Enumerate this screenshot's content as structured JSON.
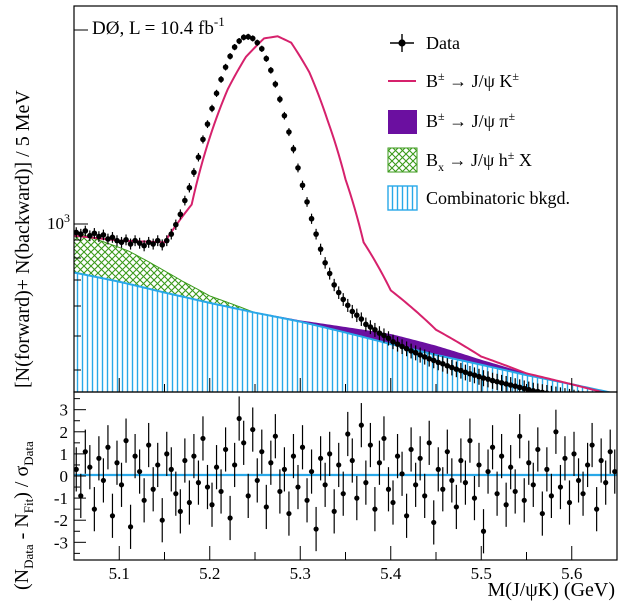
{
  "experiment_label": "DØ, L = 10.4 fb",
  "experiment_label_sup": "-1",
  "legend": {
    "data": "Data",
    "signal": {
      "pre": "B",
      "sup": "±",
      "post": " → J/ψ K",
      "sup2": "±"
    },
    "pion": {
      "pre": "B",
      "sup": "±",
      "post": " → J/ψ π",
      "sup2": "±"
    },
    "bx": {
      "pre": "B",
      "sub": "x",
      "post": " → J/ψ h",
      "sup": "±",
      "tail": " X"
    },
    "comb": "Combinatoric bkgd."
  },
  "colors": {
    "signal_line": "#d6216c",
    "pion_fill": "#6b0fa0",
    "bx_hatch": "#3a9a1a",
    "comb": "#29a8e8",
    "data": "#000000"
  },
  "y_axis_top": {
    "label": "[N(forward)+ N(backward)] / 5 MeV",
    "tick_label": "10",
    "tick_sup": "3",
    "scale": "log",
    "ylim": [
      450,
      4000
    ]
  },
  "y_axis_bottom": {
    "label_parts": [
      "(N",
      "Data",
      " - N",
      "Fit",
      ") / σ",
      "Data"
    ],
    "ticks": [
      "3",
      "2",
      "1",
      "0",
      "-1",
      "-2",
      "-3"
    ],
    "ylim": [
      -3.8,
      3.8
    ]
  },
  "x_axis": {
    "label": "M(J/ψK) (GeV)",
    "ticks": [
      "5.1",
      "5.2",
      "5.3",
      "5.4",
      "5.5",
      "5.6"
    ],
    "xlim": [
      5.05,
      5.65
    ]
  },
  "chart_data": [
    {
      "type": "line",
      "title": "",
      "xlabel": "M(J/ψK) (GeV)",
      "ylabel": "[N(forward)+ N(backward)] / 5 MeV",
      "yscale": "log",
      "xlim": [
        5.05,
        5.65
      ],
      "ylim": [
        450,
        4000
      ],
      "series": [
        {
          "name": "Data",
          "x": [
            5.0525,
            5.0575,
            5.0625,
            5.0675,
            5.0725,
            5.0775,
            5.0825,
            5.0875,
            5.0925,
            5.0975,
            5.1025,
            5.1075,
            5.1125,
            5.1175,
            5.1225,
            5.1275,
            5.1325,
            5.1375,
            5.1425,
            5.1475,
            5.1525,
            5.1575,
            5.1625,
            5.1675,
            5.1725,
            5.1775,
            5.1825,
            5.1875,
            5.1925,
            5.1975,
            5.2025,
            5.2075,
            5.2125,
            5.2175,
            5.2225,
            5.2275,
            5.2325,
            5.2375,
            5.2425,
            5.2475,
            5.2525,
            5.2575,
            5.2625,
            5.2675,
            5.2725,
            5.2775,
            5.2825,
            5.2875,
            5.2925,
            5.2975,
            5.3025,
            5.3075,
            5.3125,
            5.3175,
            5.3225,
            5.3275,
            5.3325,
            5.3375,
            5.3425,
            5.3475,
            5.3525,
            5.3575,
            5.3625,
            5.3675,
            5.3725,
            5.3775,
            5.3825,
            5.3875,
            5.3925,
            5.3975,
            5.4025,
            5.4075,
            5.4125,
            5.4175,
            5.4225,
            5.4275,
            5.4325,
            5.4375,
            5.4425,
            5.4475,
            5.4525,
            5.4575,
            5.4625,
            5.4675,
            5.4725,
            5.4775,
            5.4825,
            5.4875,
            5.4925,
            5.4975,
            5.5025,
            5.5075,
            5.5125,
            5.5175,
            5.5225,
            5.5275,
            5.5325,
            5.5375,
            5.5425,
            5.5475,
            5.5525,
            5.5575,
            5.5625,
            5.5675,
            5.5725,
            5.5775,
            5.5825,
            5.5875,
            5.5925,
            5.5975,
            5.6025,
            5.6075,
            5.6125,
            5.6175,
            5.6225,
            5.6275,
            5.6325,
            5.6375,
            5.6425,
            5.6475
          ],
          "y": [
            1110,
            1100,
            1120,
            1090,
            1105,
            1085,
            1095,
            1070,
            1080,
            1060,
            1050,
            1065,
            1040,
            1060,
            1045,
            1030,
            1050,
            1040,
            1060,
            1035,
            1060,
            1100,
            1160,
            1230,
            1330,
            1430,
            1560,
            1700,
            1880,
            2050,
            2240,
            2440,
            2640,
            2830,
            3010,
            3170,
            3280,
            3350,
            3360,
            3330,
            3250,
            3140,
            2970,
            2780,
            2570,
            2360,
            2150,
            1960,
            1780,
            1600,
            1450,
            1320,
            1200,
            1100,
            1010,
            935,
            880,
            825,
            790,
            760,
            735,
            710,
            695,
            680,
            660,
            650,
            640,
            628,
            620,
            610,
            598,
            590,
            582,
            575,
            568,
            562,
            555,
            549,
            543,
            538,
            532,
            528,
            522,
            517,
            512,
            508,
            503,
            499,
            495,
            491,
            487,
            484,
            480,
            477,
            474,
            471,
            468,
            465,
            462,
            459,
            456,
            453,
            451,
            449,
            447,
            445,
            443,
            441,
            439,
            437,
            435,
            433,
            431,
            429,
            427,
            425,
            423,
            421,
            419,
            417
          ]
        },
        {
          "name": "B± → J/ψ K±",
          "x": [
            5.05,
            5.1,
            5.15,
            5.18,
            5.2,
            5.22,
            5.24,
            5.26,
            5.275,
            5.29,
            5.31,
            5.33,
            5.35,
            5.37,
            5.4,
            5.45,
            5.5,
            5.55,
            5.6,
            5.65
          ],
          "y": [
            1090,
            1060,
            1050,
            1300,
            1900,
            2500,
            3000,
            3330,
            3370,
            3250,
            2750,
            2100,
            1500,
            1050,
            800,
            640,
            550,
            500,
            470,
            440
          ]
        },
        {
          "name": "B± → J/ψ π±",
          "x": [
            5.05,
            5.2,
            5.3,
            5.35,
            5.4,
            5.45,
            5.5,
            5.55,
            5.65
          ],
          "y": [
            0,
            0,
            5,
            20,
            35,
            30,
            15,
            5,
            0
          ]
        },
        {
          "name": "Bx → J/ψ h± X",
          "x": [
            5.05,
            5.08,
            5.11,
            5.14,
            5.17,
            5.2,
            5.25
          ],
          "y": [
            230,
            200,
            170,
            120,
            70,
            30,
            0
          ]
        },
        {
          "name": "Combinatoric bkgd.",
          "x": [
            5.05,
            5.1,
            5.15,
            5.2,
            5.25,
            5.3,
            5.35,
            5.4,
            5.45,
            5.5,
            5.55,
            5.6,
            5.65
          ],
          "y": [
            885,
            840,
            790,
            745,
            705,
            670,
            630,
            590,
            555,
            525,
            495,
            470,
            445
          ]
        }
      ]
    },
    {
      "type": "scatter",
      "title": "",
      "xlabel": "M(J/ψK) (GeV)",
      "ylabel": "(N_Data - N_Fit) / σ_Data",
      "xlim": [
        5.05,
        5.65
      ],
      "ylim": [
        -3.8,
        3.8
      ],
      "series": [
        {
          "name": "pulls",
          "x_start": 5.0525,
          "x_step": 0.005,
          "y": [
            0.3,
            -0.9,
            1.1,
            0.4,
            -1.5,
            0.8,
            -0.2,
            1.3,
            -1.8,
            0.6,
            -0.4,
            1.6,
            -2.3,
            0.9,
            0.2,
            -1.1,
            1.4,
            -0.6,
            0.5,
            -2.0,
            1.0,
            0.3,
            -0.8,
            -1.6,
            0.7,
            -1.2,
            0.9,
            -0.3,
            1.7,
            -0.5,
            -1.3,
            0.4,
            -0.7,
            1.2,
            -1.9,
            0.5,
            2.6,
            1.5,
            -0.9,
            2.1,
            -0.2,
            1.1,
            -1.4,
            0.6,
            1.8,
            -0.7,
            0.3,
            -1.7,
            0.9,
            -0.5,
            1.3,
            -1.1,
            0.2,
            -2.4,
            0.8,
            -0.4,
            1.0,
            -1.6,
            0.5,
            -0.8,
            1.9,
            0.7,
            -1.0,
            2.3,
            -0.3,
            1.4,
            -1.5,
            0.6,
            1.7,
            -0.6,
            -1.2,
            0.9,
            0.1,
            -1.8,
            1.2,
            -0.4,
            0.8,
            -0.9,
            1.5,
            -2.1,
            0.3,
            -0.6,
            1.1,
            -0.2,
            -1.4,
            0.7,
            -0.3,
            1.6,
            -1.0,
            0.5,
            -2.5,
            0.2,
            1.3,
            -0.8,
            0.9,
            -1.3,
            0.4,
            -0.7,
            1.8,
            -1.1,
            0.6,
            -0.4,
            1.2,
            -1.7,
            0.3,
            -0.9,
            2.0,
            -0.5,
            0.8,
            -1.2,
            1.0,
            -0.2,
            -0.8,
            0.5,
            1.4,
            -1.5,
            0.7,
            -0.3,
            1.1,
            0.2
          ]
        }
      ]
    }
  ]
}
